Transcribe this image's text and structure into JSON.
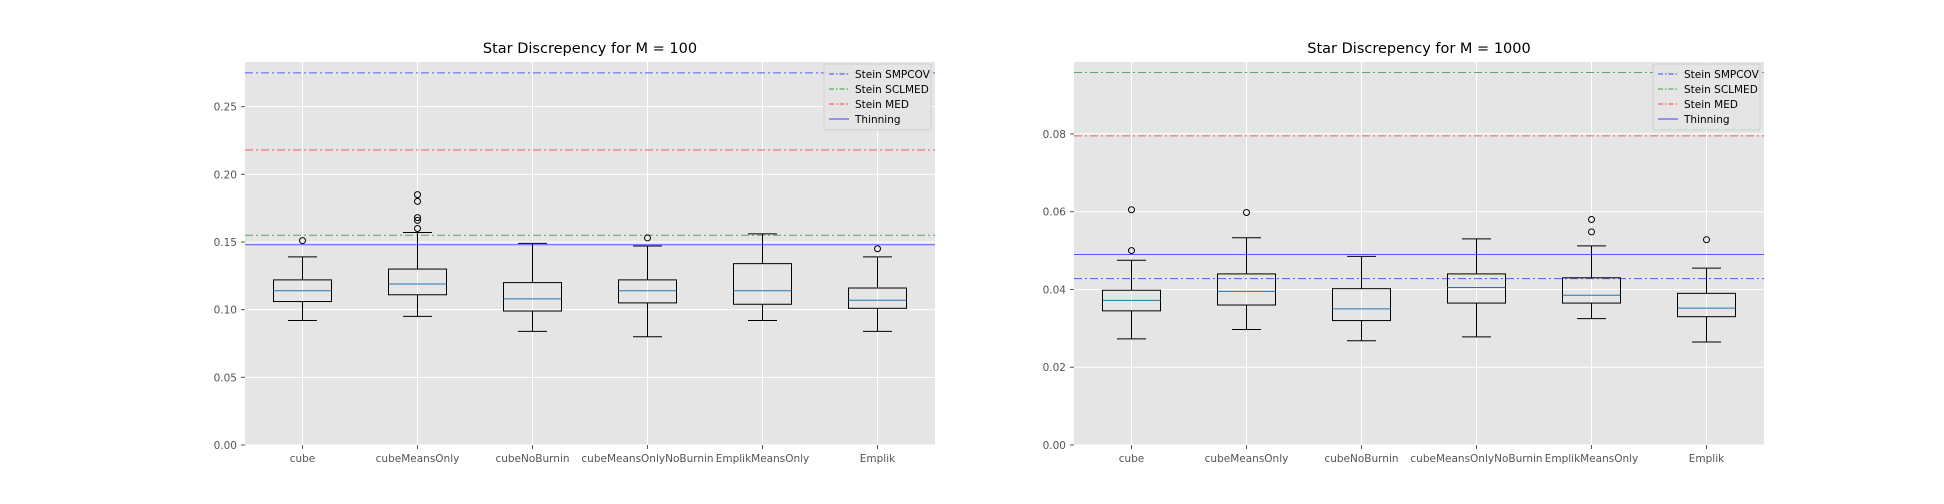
{
  "chart_data": [
    {
      "type": "box",
      "title": "Star Discrepency for M = 100",
      "xlabel": "",
      "ylabel": "",
      "ylim": [
        0,
        0.283
      ],
      "yticks": [
        0.0,
        0.05,
        0.1,
        0.15,
        0.2,
        0.25
      ],
      "ytick_labels": [
        "0.00",
        "0.05",
        "0.10",
        "0.15",
        "0.20",
        "0.25"
      ],
      "grid": true,
      "legend_position": "top-right",
      "categories": [
        "cube",
        "cubeMeansOnly",
        "cubeNoBurnin",
        "cubeMeansOnlyNoBurnin",
        "EmplikMeansOnly",
        "Emplik"
      ],
      "boxes": [
        {
          "whisker_low": 0.092,
          "q1": 0.106,
          "median": 0.114,
          "q3": 0.122,
          "whisker_high": 0.139,
          "outliers": [
            0.151
          ]
        },
        {
          "whisker_low": 0.095,
          "q1": 0.111,
          "median": 0.119,
          "q3": 0.13,
          "whisker_high": 0.157,
          "outliers": [
            0.16,
            0.166,
            0.168,
            0.18,
            0.185
          ]
        },
        {
          "whisker_low": 0.084,
          "q1": 0.099,
          "median": 0.108,
          "q3": 0.12,
          "whisker_high": 0.149,
          "outliers": []
        },
        {
          "whisker_low": 0.08,
          "q1": 0.105,
          "median": 0.114,
          "q3": 0.122,
          "whisker_high": 0.147,
          "outliers": [
            0.153
          ]
        },
        {
          "whisker_low": 0.092,
          "q1": 0.104,
          "median": 0.114,
          "q3": 0.134,
          "whisker_high": 0.156,
          "outliers": []
        },
        {
          "whisker_low": 0.084,
          "q1": 0.101,
          "median": 0.107,
          "q3": 0.116,
          "whisker_high": 0.139,
          "outliers": [
            0.145
          ]
        }
      ],
      "reference_lines": [
        {
          "name": "Stein SMPCOV",
          "value": 0.275,
          "color": "#3f3fff",
          "style": "dashdot"
        },
        {
          "name": "Stein SCLMED",
          "value": 0.155,
          "color": "#3f9f3f",
          "style": "dashdot"
        },
        {
          "name": "Stein MED",
          "value": 0.218,
          "color": "#ff4040",
          "style": "dashdot"
        },
        {
          "name": "Thinning",
          "value": 0.148,
          "color": "#3f3fff",
          "style": "solid"
        }
      ]
    },
    {
      "type": "box",
      "title": "Star Discrepency for M = 1000",
      "xlabel": "",
      "ylabel": "",
      "ylim": [
        0,
        0.0985
      ],
      "yticks": [
        0.0,
        0.02,
        0.04,
        0.06,
        0.08
      ],
      "ytick_labels": [
        "0.00",
        "0.02",
        "0.04",
        "0.06",
        "0.08"
      ],
      "grid": true,
      "legend_position": "top-right",
      "categories": [
        "cube",
        "cubeMeansOnly",
        "cubeNoBurnin",
        "cubeMeansOnlyNoBurnin",
        "EmplikMeansOnly",
        "Emplik"
      ],
      "boxes": [
        {
          "whisker_low": 0.0273,
          "q1": 0.0345,
          "median": 0.0372,
          "q3": 0.0398,
          "whisker_high": 0.0475,
          "outliers": [
            0.05,
            0.0605
          ]
        },
        {
          "whisker_low": 0.0297,
          "q1": 0.036,
          "median": 0.0395,
          "q3": 0.044,
          "whisker_high": 0.0533,
          "outliers": [
            0.0598
          ]
        },
        {
          "whisker_low": 0.0268,
          "q1": 0.032,
          "median": 0.035,
          "q3": 0.0402,
          "whisker_high": 0.0485,
          "outliers": []
        },
        {
          "whisker_low": 0.0278,
          "q1": 0.0365,
          "median": 0.0405,
          "q3": 0.044,
          "whisker_high": 0.053,
          "outliers": []
        },
        {
          "whisker_low": 0.0325,
          "q1": 0.0365,
          "median": 0.0385,
          "q3": 0.043,
          "whisker_high": 0.0512,
          "outliers": [
            0.0548,
            0.058
          ]
        },
        {
          "whisker_low": 0.0265,
          "q1": 0.033,
          "median": 0.0352,
          "q3": 0.039,
          "whisker_high": 0.0455,
          "outliers": [
            0.0528
          ]
        }
      ],
      "reference_lines": [
        {
          "name": "Stein SMPCOV",
          "value": 0.0428,
          "color": "#3f3fff",
          "style": "dashdot"
        },
        {
          "name": "Stein SCLMED",
          "value": 0.0958,
          "color": "#3f9f3f",
          "style": "dashdot"
        },
        {
          "name": "Stein MED",
          "value": 0.0795,
          "color": "#ff4040",
          "style": "dashdot"
        },
        {
          "name": "Thinning",
          "value": 0.049,
          "color": "#3f3fff",
          "style": "solid"
        }
      ]
    }
  ],
  "colors": {
    "axes_background": "#e5e5e5",
    "grid": "#ffffff",
    "box": "#000000",
    "median": "#1f77b4",
    "tick_label": "#555555",
    "title": "#000000"
  }
}
